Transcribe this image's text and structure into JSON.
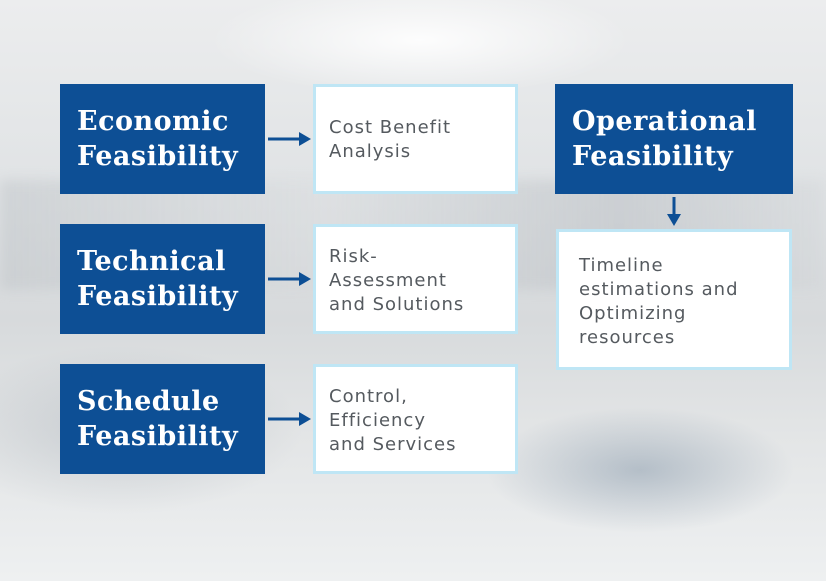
{
  "rows": [
    {
      "heading": [
        "Economic",
        "Feasibility"
      ],
      "detail": [
        "Cost Benefit",
        "Analysis"
      ]
    },
    {
      "heading": [
        "Technical",
        "Feasibility"
      ],
      "detail": [
        "Risk-",
        "Assessment",
        "and Solutions"
      ]
    },
    {
      "heading": [
        "Schedule",
        "Feasibility"
      ],
      "detail": [
        "Control,",
        "Efficiency",
        "and Services"
      ]
    }
  ],
  "operational": {
    "heading": [
      "Operational",
      "Feasibility"
    ],
    "detail": [
      "Timeline",
      "estimations and",
      "Optimizing",
      "resources"
    ]
  },
  "colors": {
    "heading_box": "#0d4f95",
    "detail_border": "#bfe6f5",
    "arrow": "#0d4f95"
  }
}
